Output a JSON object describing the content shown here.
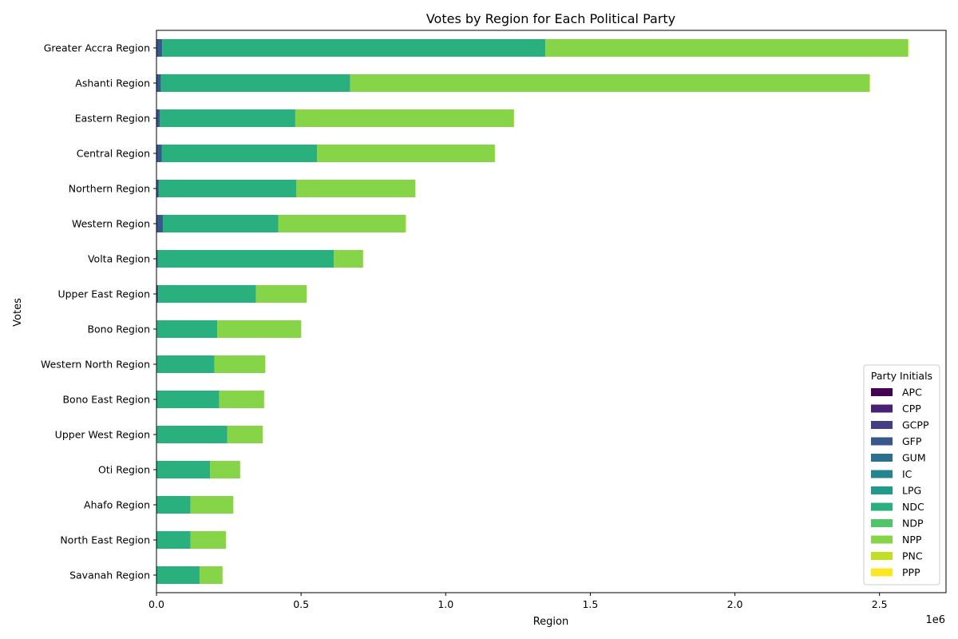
{
  "chart_data": {
    "type": "bar",
    "orientation": "horizontal",
    "stacked": true,
    "title": "Votes by Region for Each Political Party",
    "xlabel": "Region",
    "ylabel": "Votes",
    "x_scale_note": "1e6",
    "xlim": [
      0,
      2730000
    ],
    "x_ticks": [
      0,
      500000,
      1000000,
      1500000,
      2000000,
      2500000
    ],
    "x_tick_labels": [
      "0.0",
      "0.5",
      "1.0",
      "1.5",
      "2.0",
      "2.5"
    ],
    "grid": false,
    "legend_placement": "lower-right",
    "legend_title": "Party Initials",
    "categories": [
      "Greater Accra Region",
      "Ashanti Region",
      "Eastern Region",
      "Central Region",
      "Northern Region",
      "Western Region",
      "Volta Region",
      "Upper East Region",
      "Bono Region",
      "Western North Region",
      "Bono East Region",
      "Upper West Region",
      "Oti Region",
      "Ahafo Region",
      "North East Region",
      "Savanah Region"
    ],
    "series": [
      {
        "name": "APC",
        "color": "#440154",
        "values": [
          0,
          0,
          0,
          0,
          0,
          0,
          0,
          0,
          0,
          0,
          0,
          0,
          0,
          0,
          0,
          0
        ]
      },
      {
        "name": "CPP",
        "color": "#482173",
        "values": [
          0,
          0,
          0,
          0,
          0,
          0,
          0,
          0,
          0,
          0,
          0,
          0,
          0,
          0,
          0,
          0
        ]
      },
      {
        "name": "GCPP",
        "color": "#433e85",
        "values": [
          0,
          0,
          0,
          0,
          0,
          0,
          0,
          0,
          0,
          0,
          0,
          0,
          0,
          0,
          0,
          0
        ]
      },
      {
        "name": "GFP",
        "color": "#38588c",
        "values": [
          20000,
          15000,
          12000,
          18000,
          8000,
          22000,
          4000,
          6000,
          2000,
          2000,
          1000,
          2000,
          1000,
          1000,
          1000,
          1000
        ]
      },
      {
        "name": "GUM",
        "color": "#2d708e",
        "values": [
          0,
          0,
          0,
          0,
          0,
          0,
          0,
          0,
          0,
          0,
          0,
          0,
          0,
          0,
          0,
          0
        ]
      },
      {
        "name": "IC",
        "color": "#25858e",
        "values": [
          0,
          0,
          0,
          0,
          0,
          0,
          0,
          0,
          0,
          0,
          0,
          0,
          0,
          0,
          0,
          0
        ]
      },
      {
        "name": "LPG",
        "color": "#1e9b8a",
        "values": [
          0,
          0,
          0,
          0,
          0,
          0,
          0,
          0,
          0,
          0,
          0,
          0,
          0,
          0,
          0,
          0
        ]
      },
      {
        "name": "NDC",
        "color": "#2ab07f",
        "values": [
          1325000,
          655000,
          468000,
          537000,
          476000,
          399000,
          609000,
          338000,
          208000,
          198000,
          216000,
          243000,
          184000,
          117000,
          117000,
          148000
        ]
      },
      {
        "name": "NDP",
        "color": "#52c569",
        "values": [
          0,
          0,
          0,
          0,
          0,
          0,
          0,
          0,
          0,
          0,
          0,
          0,
          0,
          0,
          0,
          0
        ]
      },
      {
        "name": "NPP",
        "color": "#86d549",
        "values": [
          1253000,
          1795000,
          755000,
          614000,
          411000,
          440000,
          101000,
          175000,
          290000,
          176000,
          155000,
          122000,
          104000,
          147000,
          122000,
          79000
        ]
      },
      {
        "name": "PNC",
        "color": "#c2df23",
        "values": [
          3000,
          2000,
          2000,
          2000,
          1000,
          2000,
          1000,
          1000,
          1000,
          1000,
          1000,
          1000,
          1000,
          1000,
          1000,
          1000
        ]
      },
      {
        "name": "PPP",
        "color": "#fde725",
        "values": [
          0,
          0,
          0,
          0,
          0,
          0,
          0,
          0,
          0,
          0,
          0,
          0,
          0,
          0,
          0,
          0
        ]
      }
    ]
  }
}
